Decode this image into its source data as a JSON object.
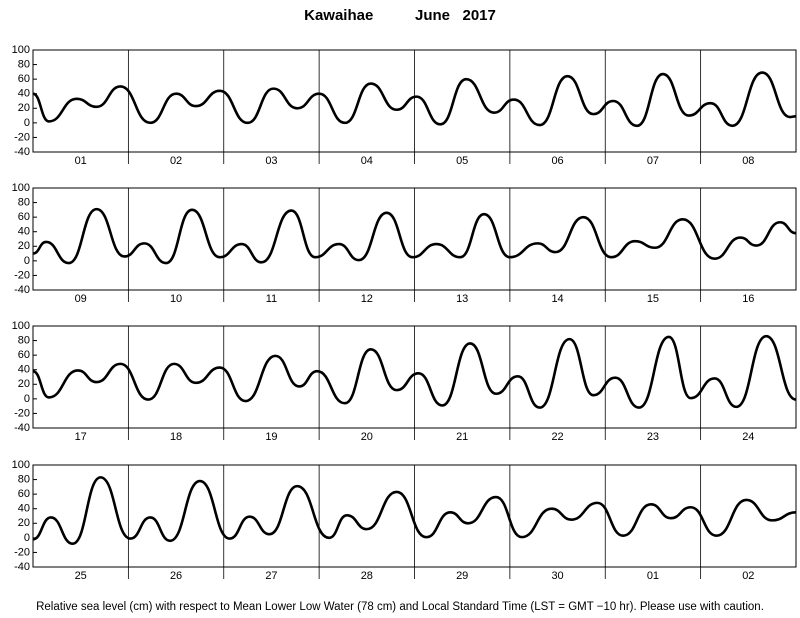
{
  "title": "Kawaihae          June   2017",
  "note": "Relative sea level (cm) with respect to Mean Lower Low Water (78 cm) and Local Standard Time (LST = GMT −10 hr). Please use with caution.",
  "chart_data": [
    {
      "type": "line",
      "categories": [
        "01",
        "02",
        "03",
        "04",
        "05",
        "06",
        "07",
        "08"
      ],
      "xlim": [
        0,
        192
      ],
      "ylim": [
        -40,
        100
      ],
      "yticks": [
        -40,
        -20,
        0,
        20,
        40,
        60,
        80,
        100
      ],
      "color": "#000000",
      "x": [
        0,
        4,
        11,
        16,
        22,
        29.5,
        36,
        41,
        47,
        54,
        60.5,
        66.5,
        72,
        78.5,
        85,
        91.5,
        96.5,
        102.5,
        109,
        116,
        121,
        127.5,
        134.5,
        141,
        146,
        152,
        158.5,
        165,
        170.5,
        176,
        183.5,
        190.5,
        192
      ],
      "values": [
        40,
        2,
        33,
        22,
        50,
        0,
        40,
        23,
        44,
        0,
        47,
        20,
        40,
        0,
        54,
        18,
        36,
        -2,
        60,
        14,
        32,
        -3,
        64,
        12,
        30,
        -4,
        67,
        10,
        27,
        -4,
        69,
        8,
        9
      ]
    },
    {
      "type": "line",
      "categories": [
        "09",
        "10",
        "11",
        "12",
        "13",
        "14",
        "15",
        "16"
      ],
      "xlim": [
        0,
        192
      ],
      "ylim": [
        -40,
        100
      ],
      "yticks": [
        -40,
        -20,
        0,
        20,
        40,
        60,
        80,
        100
      ],
      "color": "#000000",
      "x": [
        0,
        3.3,
        9,
        16,
        23,
        28,
        33.5,
        40,
        47,
        52.5,
        57.5,
        65,
        71,
        77,
        82,
        89,
        95.5,
        101.5,
        107.5,
        113.5,
        120,
        127,
        131.5,
        138.5,
        145.5,
        151.5,
        156.5,
        163.5,
        171.5,
        178,
        182,
        188,
        192
      ],
      "values": [
        10,
        26,
        -3,
        71,
        6,
        24,
        -3,
        70,
        5,
        23,
        -2,
        69,
        5,
        23,
        1,
        66,
        5,
        23,
        5,
        64,
        5,
        24,
        12,
        60,
        5,
        27,
        18,
        57,
        3,
        32,
        21,
        53,
        38
      ]
    },
    {
      "type": "line",
      "categories": [
        "17",
        "18",
        "19",
        "20",
        "21",
        "22",
        "23",
        "24"
      ],
      "xlim": [
        0,
        192
      ],
      "ylim": [
        -40,
        100
      ],
      "yticks": [
        -40,
        -20,
        0,
        20,
        40,
        60,
        80,
        100
      ],
      "color": "#000000",
      "x": [
        0,
        4,
        11.3,
        16,
        22,
        29,
        35.5,
        41,
        47,
        53.5,
        61,
        67,
        71.5,
        78.5,
        85,
        91.5,
        97,
        103,
        110,
        116.5,
        122,
        127.5,
        135,
        141,
        146.5,
        152.5,
        160,
        165.5,
        171.5,
        177,
        184.5,
        192
      ],
      "values": [
        38,
        2,
        39,
        23,
        48,
        -1,
        48,
        22,
        43,
        -3,
        59,
        17,
        38,
        -6,
        68,
        12,
        35,
        -9,
        76,
        7,
        31,
        -12,
        82,
        5,
        29,
        -12,
        85,
        1,
        28,
        -11,
        86,
        -1
      ]
    },
    {
      "type": "line",
      "categories": [
        "25",
        "26",
        "27",
        "28",
        "29",
        "30",
        "01",
        "02"
      ],
      "xlim": [
        0,
        192
      ],
      "ylim": [
        -40,
        100
      ],
      "yticks": [
        -40,
        -20,
        0,
        20,
        40,
        60,
        80,
        100
      ],
      "color": "#000000",
      "x": [
        0,
        4.5,
        10,
        17,
        24.5,
        29.5,
        34.5,
        42,
        49.5,
        54.5,
        59.5,
        66.5,
        74.5,
        79,
        84,
        91.5,
        99,
        105,
        109.5,
        116.5,
        123,
        130.5,
        135.5,
        142,
        148.5,
        155.5,
        160.5,
        165.5,
        172,
        179.5,
        186,
        192
      ],
      "values": [
        -2,
        28,
        -8,
        83,
        -1,
        28,
        -4,
        78,
        -1,
        29,
        5,
        71,
        0,
        31,
        12,
        63,
        1,
        35,
        20,
        56,
        1,
        40,
        25,
        48,
        3,
        46,
        27,
        42,
        3,
        52,
        24,
        35
      ]
    }
  ]
}
